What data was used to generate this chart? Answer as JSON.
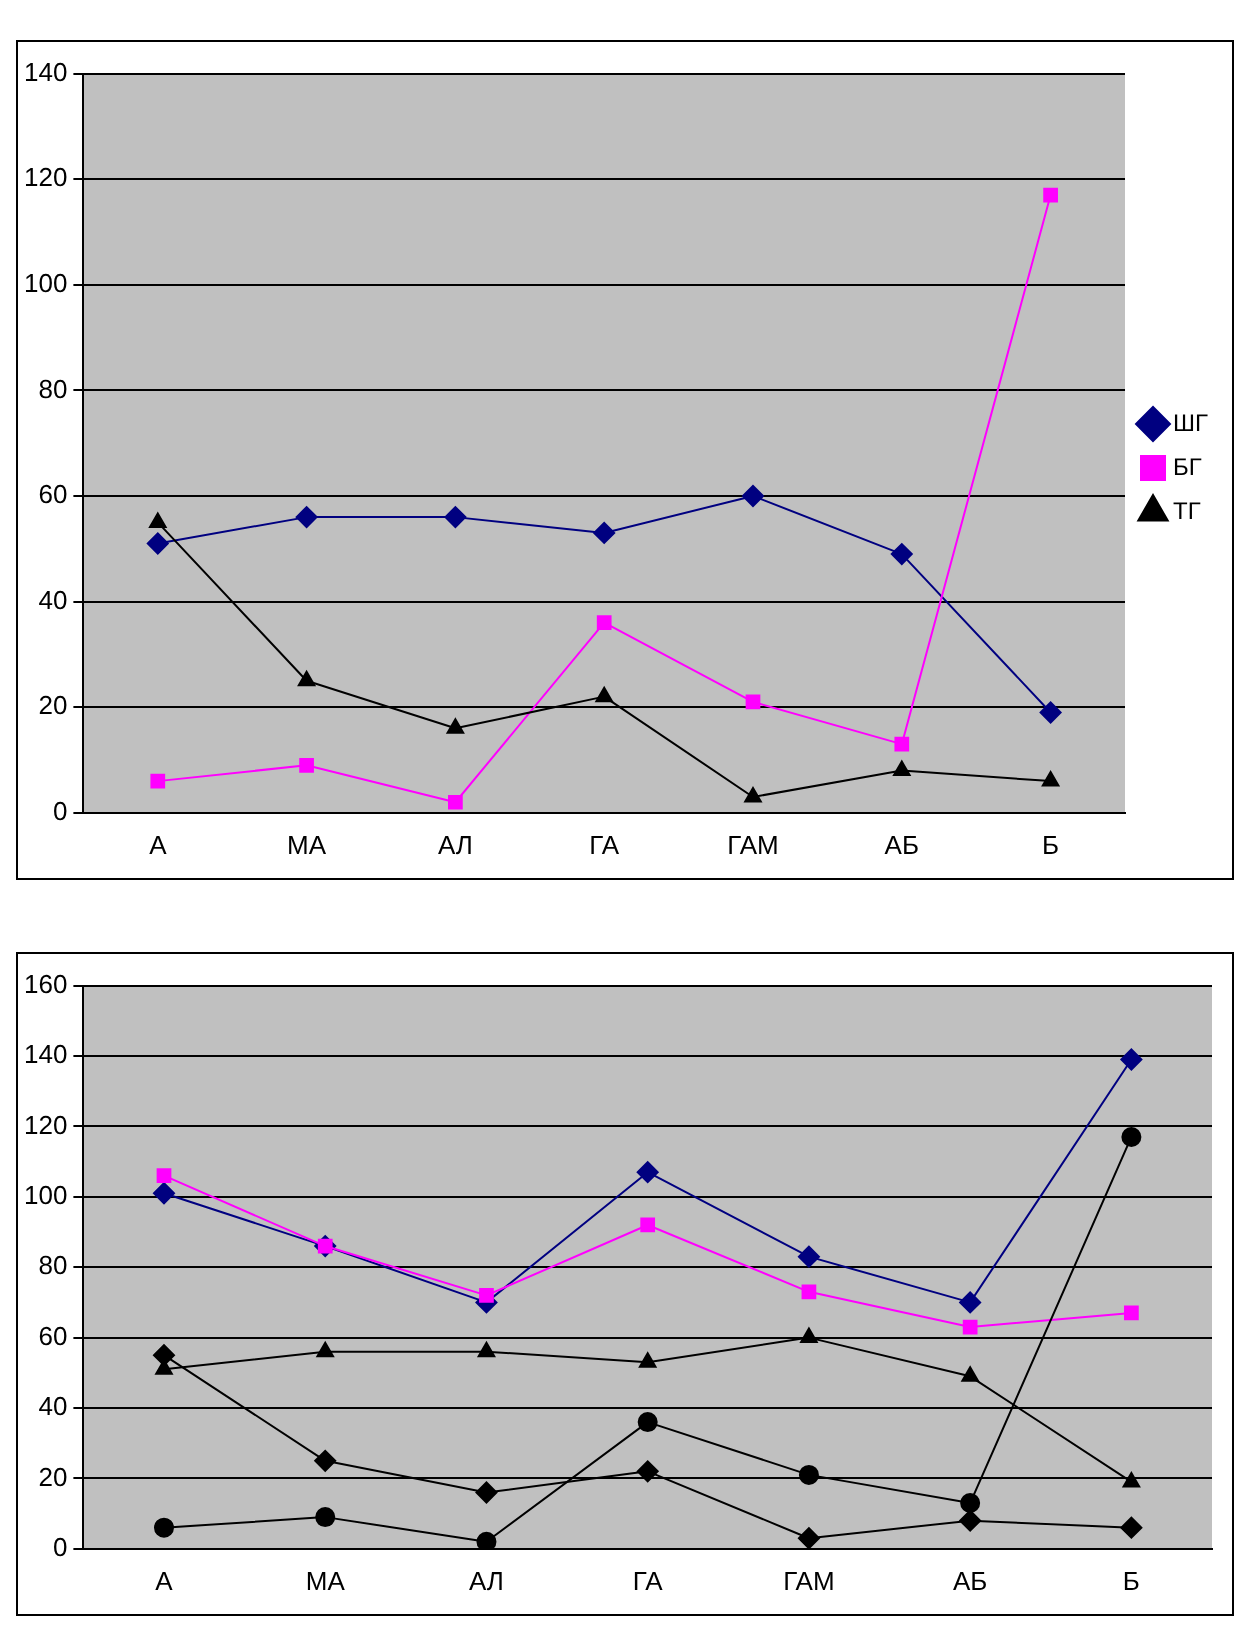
{
  "chart_data": [
    {
      "type": "line",
      "categories": [
        "А",
        "МА",
        "АЛ",
        "ГА",
        "ГАМ",
        "АБ",
        "Б"
      ],
      "ylim": [
        0,
        140
      ],
      "yticks": [
        0,
        20,
        40,
        60,
        80,
        100,
        120,
        140
      ],
      "grid": "y",
      "legend": "right",
      "series": [
        {
          "name": "ШГ",
          "color": "#000080",
          "marker": "diamond",
          "values": [
            51,
            56,
            56,
            53,
            60,
            49,
            19
          ]
        },
        {
          "name": "БГ",
          "color": "#ff00ff",
          "marker": "square",
          "values": [
            6,
            9,
            2,
            36,
            21,
            13,
            117
          ]
        },
        {
          "name": "ТГ",
          "color": "#000000",
          "marker": "triangle",
          "values": [
            55,
            25,
            16,
            22,
            3,
            8,
            6
          ]
        }
      ]
    },
    {
      "type": "line",
      "categories": [
        "А",
        "МА",
        "АЛ",
        "ГА",
        "ГАМ",
        "АБ",
        "Б"
      ],
      "ylim": [
        0,
        160
      ],
      "yticks": [
        0,
        20,
        40,
        60,
        80,
        100,
        120,
        140,
        160
      ],
      "grid": "y",
      "series": [
        {
          "color": "#000080",
          "marker": "diamond",
          "values": [
            101,
            86,
            70,
            107,
            83,
            70,
            139
          ]
        },
        {
          "color": "#ff00ff",
          "marker": "square",
          "values": [
            106,
            86,
            72,
            92,
            73,
            63,
            67
          ]
        },
        {
          "color": "#000000",
          "marker": "triangle",
          "values": [
            51,
            56,
            56,
            53,
            60,
            49,
            19
          ]
        },
        {
          "color": "#000000",
          "marker": "circle",
          "values": [
            6,
            9,
            2,
            36,
            21,
            13,
            117
          ]
        },
        {
          "color": "#000000",
          "marker": "diamond",
          "values": [
            55,
            25,
            16,
            22,
            3,
            8,
            6
          ]
        }
      ]
    }
  ]
}
